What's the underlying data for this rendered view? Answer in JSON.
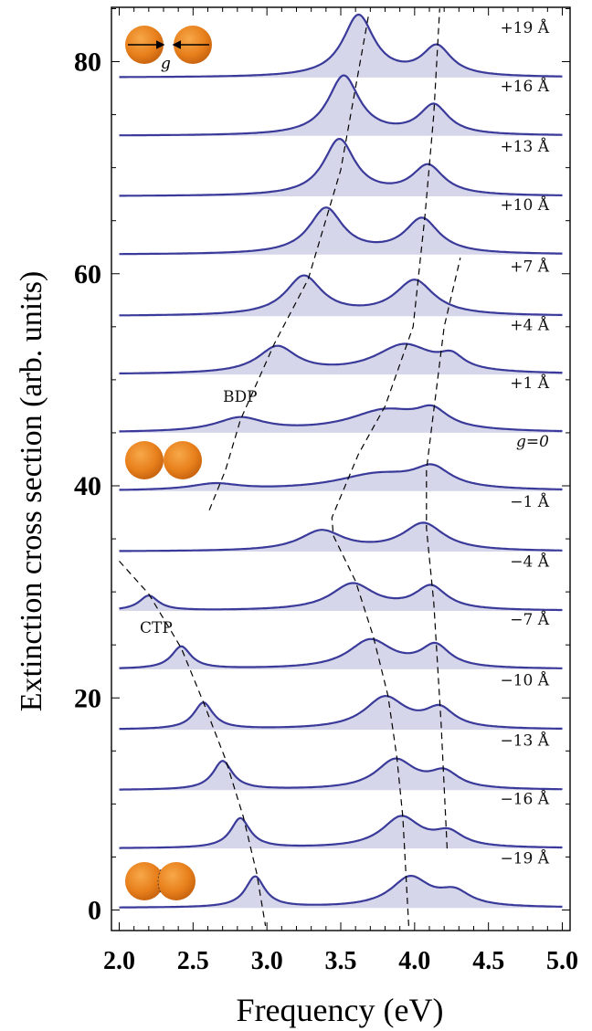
{
  "chart_data": {
    "type": "line",
    "xlabel": "Frequency (eV)",
    "ylabel": "Extinction cross section (arb. units)",
    "xlim": [
      2.0,
      5.0
    ],
    "ylim": [
      -1.5,
      85
    ],
    "xticks": [
      "2.0",
      "2.5",
      "3.0",
      "3.5",
      "4.0",
      "4.5",
      "5.0"
    ],
    "yticks": [
      "0",
      "20",
      "40",
      "60",
      "80"
    ],
    "ytick_values": [
      0,
      20,
      40,
      60,
      80
    ],
    "fill": true,
    "line_color": "#3a3a9a",
    "fill_color": "#d6d6ea",
    "series": [
      {
        "name": "+19 Å",
        "baseline": 78.5,
        "peaks": [
          [
            3.62,
            5.8,
            0.13
          ],
          [
            4.15,
            2.8,
            0.12
          ]
        ]
      },
      {
        "name": "+16 Å",
        "baseline": 73.0,
        "peaks": [
          [
            3.52,
            5.6,
            0.13
          ],
          [
            4.13,
            2.8,
            0.12
          ]
        ]
      },
      {
        "name": "+13 Å",
        "baseline": 67.3,
        "peaks": [
          [
            3.49,
            5.3,
            0.13
          ],
          [
            4.09,
            2.8,
            0.13
          ]
        ]
      },
      {
        "name": "+10 Å",
        "baseline": 61.8,
        "peaks": [
          [
            3.4,
            4.3,
            0.14
          ],
          [
            4.05,
            3.3,
            0.14
          ]
        ]
      },
      {
        "name": "+7 Å",
        "baseline": 56.0,
        "peaks": [
          [
            3.25,
            3.7,
            0.15
          ],
          [
            4.0,
            3.3,
            0.16
          ]
        ]
      },
      {
        "name": "+4 Å",
        "baseline": 50.5,
        "peaks": [
          [
            3.07,
            2.5,
            0.16
          ],
          [
            3.93,
            2.7,
            0.24
          ],
          [
            4.25,
            1.2,
            0.1
          ]
        ]
      },
      {
        "name": "+1 Å",
        "baseline": 45.0,
        "peaks": [
          [
            2.82,
            1.3,
            0.2
          ],
          [
            3.8,
            2.0,
            0.3
          ],
          [
            4.12,
            1.6,
            0.13
          ]
        ]
      },
      {
        "name": "g=0",
        "baseline": 39.5,
        "peaks": [
          [
            2.65,
            0.6,
            0.2
          ],
          [
            3.75,
            1.5,
            0.35
          ],
          [
            4.12,
            1.8,
            0.15
          ]
        ]
      },
      {
        "name": "−1 Å",
        "baseline": 33.8,
        "peaks": [
          [
            3.37,
            1.9,
            0.18
          ],
          [
            4.06,
            2.6,
            0.17
          ]
        ]
      },
      {
        "name": "−4 Å",
        "baseline": 28.2,
        "peaks": [
          [
            2.2,
            1.4,
            0.08
          ],
          [
            3.58,
            2.5,
            0.18
          ],
          [
            4.11,
            2.2,
            0.13
          ]
        ]
      },
      {
        "name": "−7 Å",
        "baseline": 22.7,
        "peaks": [
          [
            2.42,
            2.1,
            0.08
          ],
          [
            3.7,
            2.7,
            0.18
          ],
          [
            4.14,
            2.1,
            0.12
          ]
        ]
      },
      {
        "name": "−10 Å",
        "baseline": 17.0,
        "peaks": [
          [
            2.57,
            2.5,
            0.08
          ],
          [
            3.8,
            3.0,
            0.17
          ],
          [
            4.17,
            1.8,
            0.12
          ]
        ]
      },
      {
        "name": "−13 Å",
        "baseline": 11.3,
        "peaks": [
          [
            2.7,
            2.7,
            0.08
          ],
          [
            3.87,
            2.8,
            0.16
          ],
          [
            4.2,
            1.5,
            0.12
          ]
        ]
      },
      {
        "name": "−16 Å",
        "baseline": 5.8,
        "peaks": [
          [
            2.82,
            2.8,
            0.08
          ],
          [
            3.91,
            2.9,
            0.16
          ],
          [
            4.23,
            1.3,
            0.12
          ]
        ]
      },
      {
        "name": "−19 Å",
        "baseline": 0.2,
        "peaks": [
          [
            2.92,
            2.9,
            0.08
          ],
          [
            3.97,
            2.8,
            0.16
          ],
          [
            4.27,
            1.3,
            0.13
          ]
        ]
      }
    ],
    "guide_lines": [
      {
        "name": "BDP-branch",
        "points": [
          [
            2.61,
            37.7
          ],
          [
            2.72,
            41.5
          ],
          [
            2.82,
            46.2
          ],
          [
            3.05,
            53.4
          ],
          [
            3.28,
            59.5
          ],
          [
            3.5,
            69.8
          ],
          [
            3.69,
            84.5
          ]
        ]
      },
      {
        "name": "CTP-branch",
        "points": [
          [
            2.0,
            32.9
          ],
          [
            2.2,
            29.8
          ],
          [
            2.42,
            24.7
          ],
          [
            2.57,
            19.6
          ],
          [
            2.72,
            14.2
          ],
          [
            2.84,
            8.8
          ],
          [
            2.93,
            3.5
          ],
          [
            2.99,
            -1.5
          ]
        ]
      },
      {
        "name": "mid-low",
        "points": [
          [
            3.96,
            -1.5
          ],
          [
            3.92,
            8.8
          ],
          [
            3.88,
            14.4
          ],
          [
            3.82,
            20.2
          ],
          [
            3.72,
            25.8
          ],
          [
            3.6,
            31.0
          ],
          [
            3.45,
            35.3
          ],
          [
            3.44,
            37.0
          ],
          [
            3.62,
            43.0
          ],
          [
            3.8,
            47.5
          ],
          [
            3.99,
            55.0
          ],
          [
            4.07,
            65.5
          ],
          [
            4.13,
            75.0
          ],
          [
            4.17,
            85.0
          ]
        ]
      },
      {
        "name": "high-right",
        "points": [
          [
            4.22,
            5.8
          ],
          [
            4.18,
            17.5
          ],
          [
            4.13,
            29.0
          ],
          [
            4.08,
            36.0
          ],
          [
            4.08,
            41.5
          ],
          [
            4.12,
            46.0
          ],
          [
            4.2,
            55.0
          ],
          [
            4.31,
            61.5
          ]
        ]
      }
    ],
    "mode_labels": [
      "BDP",
      "CTP"
    ],
    "insets": [
      "separated",
      "touching",
      "overlapping"
    ],
    "inset_gap_label": "g"
  }
}
